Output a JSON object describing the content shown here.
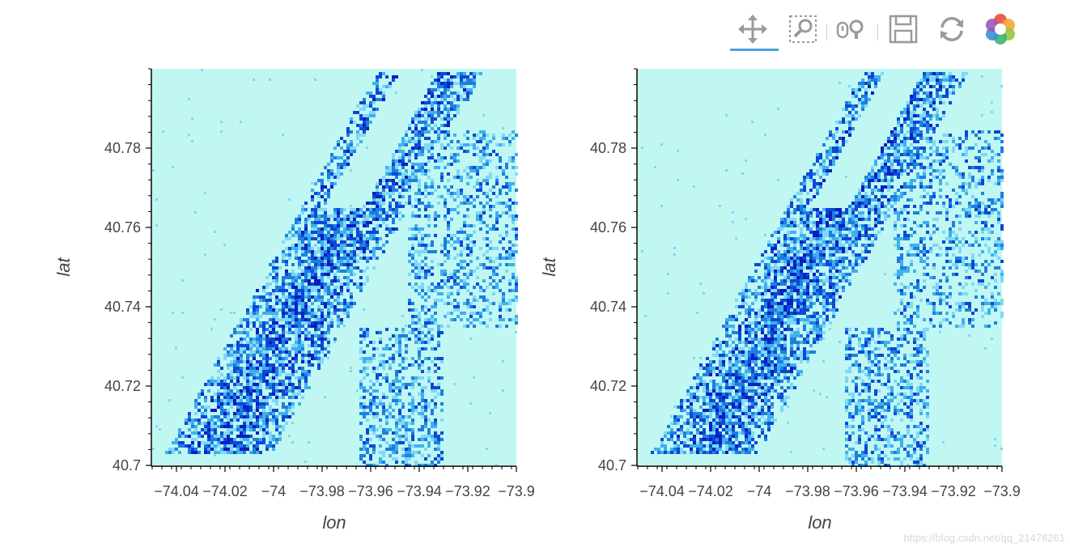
{
  "toolbar": {
    "tools": [
      {
        "name": "pan-tool",
        "icon": "pan-icon",
        "active": true
      },
      {
        "name": "box-zoom-tool",
        "icon": "box-zoom-icon"
      },
      {
        "name": "wheel-zoom-tool",
        "icon": "wheel-zoom-icon"
      },
      {
        "name": "save-tool",
        "icon": "save-icon"
      },
      {
        "name": "reset-tool",
        "icon": "reset-icon"
      },
      {
        "name": "bokeh-logo",
        "icon": "bokeh-logo-icon"
      }
    ],
    "active_color": "#4aa3df"
  },
  "colors": {
    "background": "#c0f7f2",
    "ramp": [
      "#7fd8f8",
      "#3fb0ee",
      "#1e7ee0",
      "#0e48d6",
      "#0a1fc0"
    ]
  },
  "watermark": "https://blog.csdn.net/qq_21478261",
  "chart_data": [
    {
      "type": "heatmap",
      "title": "",
      "xlabel": "lon",
      "ylabel": "lat",
      "xlim": [
        -74.05,
        -73.9
      ],
      "ylim": [
        40.7,
        40.8
      ],
      "xticks": [
        -74.04,
        -74.02,
        -74,
        -73.98,
        -73.96,
        -73.94,
        -73.92,
        -73.9
      ],
      "xtick_labels": [
        "−74.04",
        "−74.02",
        "−74",
        "−73.98",
        "−73.96",
        "−73.94",
        "−73.92",
        "−73.9"
      ],
      "yticks": [
        40.7,
        40.72,
        40.74,
        40.76,
        40.78
      ],
      "ytick_labels": [
        "40.7",
        "40.72",
        "40.74",
        "40.76",
        "40.78"
      ],
      "grid": false
    },
    {
      "type": "heatmap",
      "title": "",
      "xlabel": "lon",
      "ylabel": "lat",
      "xlim": [
        -74.05,
        -73.9
      ],
      "ylim": [
        40.7,
        40.8
      ],
      "xticks": [
        -74.04,
        -74.02,
        -74,
        -73.98,
        -73.96,
        -73.94,
        -73.92,
        -73.9
      ],
      "xtick_labels": [
        "−74.04",
        "−74.02",
        "−74",
        "−73.98",
        "−73.96",
        "−73.94",
        "−73.92",
        "−73.9"
      ],
      "yticks": [
        40.7,
        40.72,
        40.74,
        40.76,
        40.78
      ],
      "ytick_labels": [
        "40.7",
        "40.72",
        "40.74",
        "40.76",
        "40.78"
      ],
      "grid": false
    }
  ]
}
